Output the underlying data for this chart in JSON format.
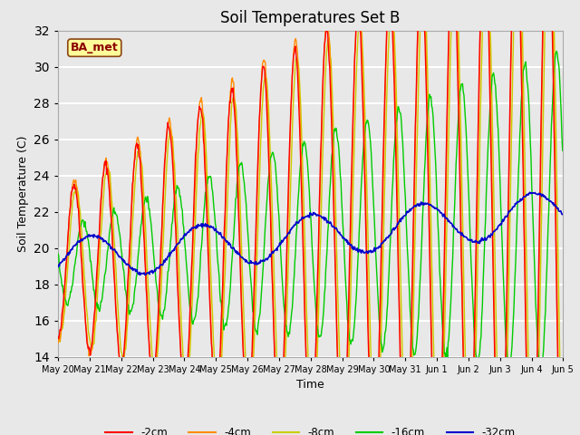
{
  "title": "Soil Temperatures Set B",
  "xlabel": "Time",
  "ylabel": "Soil Temperature (C)",
  "ylim": [
    14,
    32
  ],
  "yticks": [
    14,
    16,
    18,
    20,
    22,
    24,
    26,
    28,
    30,
    32
  ],
  "background_color": "#e8e8e8",
  "plot_bg_color": "#e8e8e8",
  "grid_color": "#ffffff",
  "annotation_text": "BA_met",
  "annotation_bg": "#ffff99",
  "annotation_border": "#8B4513",
  "annotation_text_color": "#8B0000",
  "colors": {
    "-2cm": "#ff0000",
    "-4cm": "#ff8c00",
    "-8cm": "#cccc00",
    "-16cm": "#00cc00",
    "-32cm": "#0000cc"
  },
  "legend_labels": [
    "-2cm",
    "-4cm",
    "-8cm",
    "-16cm",
    "-32cm"
  ],
  "start_day": 20,
  "num_days": 16,
  "pts_per_day": 48
}
